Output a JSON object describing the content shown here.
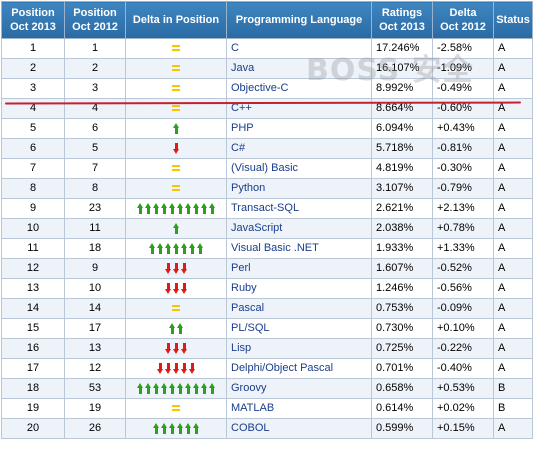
{
  "headers": {
    "pos2013": [
      "Position",
      "Oct 2013"
    ],
    "pos2012": [
      "Position",
      "Oct 2012"
    ],
    "delta_pos": "Delta in Position",
    "language": "Programming Language",
    "ratings": [
      "Ratings",
      "Oct 2013"
    ],
    "delta2012": [
      "Delta",
      "Oct 2012"
    ],
    "status": "Status"
  },
  "rows": [
    {
      "pos2013": "1",
      "pos2012": "1",
      "trend": "same",
      "count": 0,
      "language": "C",
      "rating": "17.246%",
      "delta": "-2.58%",
      "status": "A"
    },
    {
      "pos2013": "2",
      "pos2012": "2",
      "trend": "same",
      "count": 0,
      "language": "Java",
      "rating": "16.107%",
      "delta": "-1.09%",
      "status": "A"
    },
    {
      "pos2013": "3",
      "pos2012": "3",
      "trend": "same",
      "count": 0,
      "language": "Objective-C",
      "rating": "8.992%",
      "delta": "-0.49%",
      "status": "A"
    },
    {
      "pos2013": "4",
      "pos2012": "4",
      "trend": "same",
      "count": 0,
      "language": "C++",
      "rating": "8.664%",
      "delta": "-0.60%",
      "status": "A"
    },
    {
      "pos2013": "5",
      "pos2012": "6",
      "trend": "up",
      "count": 1,
      "language": "PHP",
      "rating": "6.094%",
      "delta": "+0.43%",
      "status": "A"
    },
    {
      "pos2013": "6",
      "pos2012": "5",
      "trend": "down",
      "count": 1,
      "language": "C#",
      "rating": "5.718%",
      "delta": "-0.81%",
      "status": "A"
    },
    {
      "pos2013": "7",
      "pos2012": "7",
      "trend": "same",
      "count": 0,
      "language": "(Visual) Basic",
      "rating": "4.819%",
      "delta": "-0.30%",
      "status": "A"
    },
    {
      "pos2013": "8",
      "pos2012": "8",
      "trend": "same",
      "count": 0,
      "language": "Python",
      "rating": "3.107%",
      "delta": "-0.79%",
      "status": "A"
    },
    {
      "pos2013": "9",
      "pos2012": "23",
      "trend": "up",
      "count": 10,
      "language": "Transact-SQL",
      "rating": "2.621%",
      "delta": "+2.13%",
      "status": "A"
    },
    {
      "pos2013": "10",
      "pos2012": "11",
      "trend": "up",
      "count": 1,
      "language": "JavaScript",
      "rating": "2.038%",
      "delta": "+0.78%",
      "status": "A"
    },
    {
      "pos2013": "11",
      "pos2012": "18",
      "trend": "up",
      "count": 7,
      "language": "Visual Basic .NET",
      "rating": "1.933%",
      "delta": "+1.33%",
      "status": "A"
    },
    {
      "pos2013": "12",
      "pos2012": "9",
      "trend": "down",
      "count": 3,
      "language": "Perl",
      "rating": "1.607%",
      "delta": "-0.52%",
      "status": "A"
    },
    {
      "pos2013": "13",
      "pos2012": "10",
      "trend": "down",
      "count": 3,
      "language": "Ruby",
      "rating": "1.246%",
      "delta": "-0.56%",
      "status": "A"
    },
    {
      "pos2013": "14",
      "pos2012": "14",
      "trend": "same",
      "count": 0,
      "language": "Pascal",
      "rating": "0.753%",
      "delta": "-0.09%",
      "status": "A"
    },
    {
      "pos2013": "15",
      "pos2012": "17",
      "trend": "up",
      "count": 2,
      "language": "PL/SQL",
      "rating": "0.730%",
      "delta": "+0.10%",
      "status": "A"
    },
    {
      "pos2013": "16",
      "pos2012": "13",
      "trend": "down",
      "count": 3,
      "language": "Lisp",
      "rating": "0.725%",
      "delta": "-0.22%",
      "status": "A"
    },
    {
      "pos2013": "17",
      "pos2012": "12",
      "trend": "down",
      "count": 5,
      "language": "Delphi/Object Pascal",
      "rating": "0.701%",
      "delta": "-0.40%",
      "status": "A"
    },
    {
      "pos2013": "18",
      "pos2012": "53",
      "trend": "up",
      "count": 10,
      "language": "Groovy",
      "rating": "0.658%",
      "delta": "+0.53%",
      "status": "B"
    },
    {
      "pos2013": "19",
      "pos2012": "19",
      "trend": "same",
      "count": 0,
      "language": "MATLAB",
      "rating": "0.614%",
      "delta": "+0.02%",
      "status": "B"
    },
    {
      "pos2013": "20",
      "pos2012": "26",
      "trend": "up",
      "count": 6,
      "language": "COBOL",
      "rating": "0.599%",
      "delta": "+0.15%",
      "status": "A"
    }
  ],
  "watermark": "BOSS 安全",
  "colors": {
    "header_bg": "#2f74b0",
    "language_text": "#1a3e8c",
    "arrow_up": "#2c9f1c",
    "arrow_down": "#e01818",
    "no_change": "#f3c600",
    "highlight_line": "#c42030"
  }
}
